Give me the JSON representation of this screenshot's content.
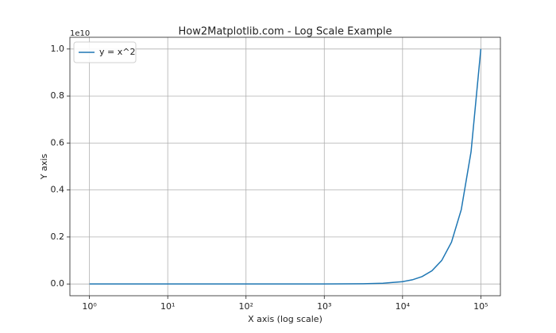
{
  "chart_data": {
    "type": "line",
    "title": "How2Matplotlib.com - Log Scale Example",
    "x_label": "X axis (log scale)",
    "y_label": "Y axis",
    "y_offset_label": "1e10",
    "x": [
      1,
      3.162,
      10,
      31.62,
      100,
      316.2,
      1000,
      3162,
      5623,
      10000,
      13335,
      17783,
      23714,
      31623,
      42170,
      56234,
      74989,
      100000
    ],
    "series": [
      {
        "name": "y = x^2",
        "color": "#1f77b4",
        "values": [
          0,
          0,
          0,
          0,
          0,
          0,
          0.0001,
          0.001,
          0.0032,
          0.01,
          0.0178,
          0.0316,
          0.0562,
          0.1,
          0.1778,
          0.3162,
          0.5623,
          1
        ]
      }
    ],
    "x_scale": "log",
    "xlim": [
      0.5623,
      177828
    ],
    "xticks": [
      {
        "value": 1,
        "label": "10⁰"
      },
      {
        "value": 10,
        "label": "10¹"
      },
      {
        "value": 100,
        "label": "10²"
      },
      {
        "value": 1000,
        "label": "10³"
      },
      {
        "value": 10000,
        "label": "10⁴"
      },
      {
        "value": 100000,
        "label": "10⁵"
      }
    ],
    "ylim": [
      -0.05,
      1.05
    ],
    "yticks": [
      {
        "value": 0,
        "label": "0.0"
      },
      0.2,
      0.4,
      0.6,
      0.8,
      {
        "value": 1,
        "label": "1.0"
      }
    ],
    "grid": true,
    "legend": "upper left"
  }
}
